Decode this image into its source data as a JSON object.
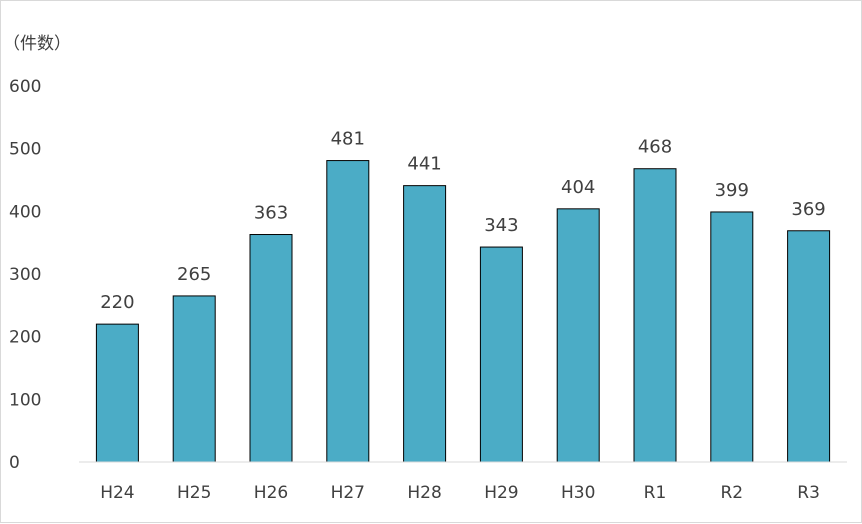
{
  "chart_data": {
    "type": "bar",
    "unit_label": "（件数）",
    "categories": [
      "H24",
      "H25",
      "H26",
      "H27",
      "H28",
      "H29",
      "H30",
      "R1",
      "R2",
      "R3"
    ],
    "values": [
      220,
      265,
      363,
      481,
      441,
      343,
      404,
      468,
      399,
      369
    ],
    "ylim": [
      0,
      600
    ],
    "yticks": [
      0,
      100,
      200,
      300,
      400,
      500,
      600
    ],
    "grid": false,
    "data_labels": true,
    "bar_color": "#4bacc6",
    "bar_edge_color": "#000000",
    "legend": "none"
  }
}
